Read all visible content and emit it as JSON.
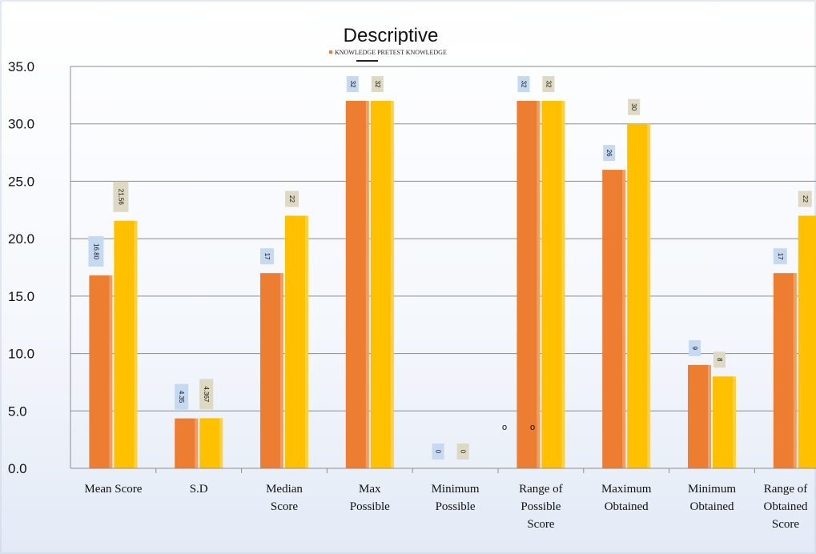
{
  "chart_data": {
    "type": "bar",
    "title": "Descriptive",
    "legend_text": "KNOWLEDGE PRETEST KNOWLEDGE",
    "legend_position": "top",
    "categories": [
      [
        "Mean Score"
      ],
      [
        "S.D"
      ],
      [
        "Median",
        "Score"
      ],
      [
        "Max",
        "Possible"
      ],
      [
        "Minimum",
        "Possible"
      ],
      [
        "Range of",
        "Possible",
        "Score"
      ],
      [
        "Maximum",
        "Obtained"
      ],
      [
        "Minimum",
        "Obtained"
      ],
      [
        "Range of",
        "Obtained",
        "Score"
      ]
    ],
    "series": [
      {
        "color": "#ED7D31",
        "values": [
          16.8,
          4.35,
          17,
          32,
          0,
          32,
          26,
          9,
          17
        ],
        "labels": [
          "16.80",
          "4.35",
          "17",
          "32",
          "0",
          "32",
          "26",
          "9",
          "17"
        ]
      },
      {
        "color": "#FFC000",
        "values": [
          21.56,
          4.367,
          22,
          32,
          0,
          32,
          30,
          8,
          22
        ],
        "labels": [
          "21.56",
          "4.367",
          "22",
          "32",
          "0",
          "32",
          "30",
          "8",
          "22"
        ]
      }
    ],
    "ylim": [
      0,
      35
    ],
    "yticks": [
      "0.0",
      "5.0",
      "10.0",
      "15.0",
      "20.0",
      "25.0",
      "30.0",
      "35.0"
    ],
    "grid": true,
    "stray_marks": [
      "o",
      "o"
    ],
    "colors": {
      "label_box_pretest": "#C5D9F1",
      "label_box_posttest": "#DDD9C3",
      "gridline": "#8C8C8C"
    }
  }
}
